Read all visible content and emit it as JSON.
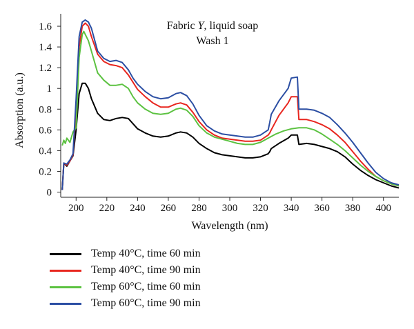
{
  "chart_data": {
    "type": "line",
    "title_line1_prefix": "Fabric ",
    "title_line1_italic": "Y",
    "title_line1_suffix": ", liquid soap",
    "title_line2": "Wash 1",
    "xlabel": "Wavelength (nm)",
    "ylabel": "Absorption (a.u.)",
    "xlim": [
      190,
      410
    ],
    "ylim": [
      -0.05,
      1.72
    ],
    "xticks": [
      200,
      220,
      240,
      260,
      280,
      300,
      320,
      340,
      360,
      380,
      400
    ],
    "xtick_labels": [
      "200",
      "220",
      "240",
      "260",
      "280",
      "300",
      "320",
      "340",
      "360",
      "380",
      "400"
    ],
    "yticks": [
      0,
      0.2,
      0.4,
      0.6,
      0.8,
      1.0,
      1.2,
      1.4,
      1.6
    ],
    "ytick_labels": [
      "0",
      "0.2",
      "0.4",
      "0.6",
      "0.8",
      "1",
      "1.2",
      "1.4",
      "1.6"
    ],
    "legend_position": "bottom",
    "series": [
      {
        "name": "Temp 40°C, time 60 min",
        "color": "#000000",
        "points": [
          [
            191,
            0.02
          ],
          [
            192,
            0.28
          ],
          [
            194,
            0.25
          ],
          [
            196,
            0.3
          ],
          [
            198,
            0.35
          ],
          [
            200,
            0.6
          ],
          [
            202,
            0.95
          ],
          [
            204,
            1.05
          ],
          [
            206,
            1.05
          ],
          [
            208,
            1.0
          ],
          [
            210,
            0.9
          ],
          [
            214,
            0.76
          ],
          [
            218,
            0.7
          ],
          [
            222,
            0.69
          ],
          [
            226,
            0.71
          ],
          [
            230,
            0.72
          ],
          [
            234,
            0.71
          ],
          [
            237,
            0.66
          ],
          [
            240,
            0.61
          ],
          [
            245,
            0.57
          ],
          [
            250,
            0.54
          ],
          [
            255,
            0.53
          ],
          [
            260,
            0.54
          ],
          [
            265,
            0.57
          ],
          [
            268,
            0.58
          ],
          [
            272,
            0.57
          ],
          [
            276,
            0.53
          ],
          [
            280,
            0.47
          ],
          [
            285,
            0.42
          ],
          [
            290,
            0.38
          ],
          [
            295,
            0.36
          ],
          [
            300,
            0.35
          ],
          [
            305,
            0.34
          ],
          [
            310,
            0.33
          ],
          [
            315,
            0.33
          ],
          [
            320,
            0.34
          ],
          [
            325,
            0.37
          ],
          [
            326,
            0.39
          ],
          [
            327,
            0.42
          ],
          [
            332,
            0.47
          ],
          [
            338,
            0.52
          ],
          [
            340,
            0.55
          ],
          [
            344,
            0.55
          ],
          [
            345,
            0.46
          ],
          [
            350,
            0.47
          ],
          [
            355,
            0.46
          ],
          [
            360,
            0.44
          ],
          [
            365,
            0.42
          ],
          [
            370,
            0.39
          ],
          [
            375,
            0.34
          ],
          [
            380,
            0.27
          ],
          [
            385,
            0.21
          ],
          [
            390,
            0.16
          ],
          [
            395,
            0.12
          ],
          [
            400,
            0.09
          ],
          [
            405,
            0.06
          ],
          [
            410,
            0.04
          ]
        ]
      },
      {
        "name": "Temp 40°C, time 90 min",
        "color": "#e8261f",
        "points": [
          [
            191,
            0.02
          ],
          [
            192,
            0.28
          ],
          [
            194,
            0.26
          ],
          [
            196,
            0.3
          ],
          [
            198,
            0.36
          ],
          [
            200,
            0.8
          ],
          [
            202,
            1.4
          ],
          [
            204,
            1.6
          ],
          [
            206,
            1.63
          ],
          [
            208,
            1.6
          ],
          [
            210,
            1.5
          ],
          [
            214,
            1.33
          ],
          [
            218,
            1.26
          ],
          [
            222,
            1.23
          ],
          [
            226,
            1.22
          ],
          [
            230,
            1.2
          ],
          [
            234,
            1.13
          ],
          [
            237,
            1.06
          ],
          [
            240,
            0.99
          ],
          [
            245,
            0.92
          ],
          [
            250,
            0.86
          ],
          [
            255,
            0.82
          ],
          [
            260,
            0.82
          ],
          [
            265,
            0.85
          ],
          [
            268,
            0.86
          ],
          [
            272,
            0.84
          ],
          [
            276,
            0.77
          ],
          [
            280,
            0.68
          ],
          [
            285,
            0.6
          ],
          [
            290,
            0.55
          ],
          [
            295,
            0.52
          ],
          [
            300,
            0.51
          ],
          [
            305,
            0.5
          ],
          [
            310,
            0.49
          ],
          [
            315,
            0.49
          ],
          [
            320,
            0.5
          ],
          [
            325,
            0.55
          ],
          [
            326,
            0.57
          ],
          [
            327,
            0.6
          ],
          [
            332,
            0.74
          ],
          [
            338,
            0.86
          ],
          [
            340,
            0.92
          ],
          [
            344,
            0.92
          ],
          [
            345,
            0.7
          ],
          [
            350,
            0.7
          ],
          [
            355,
            0.68
          ],
          [
            360,
            0.65
          ],
          [
            365,
            0.61
          ],
          [
            370,
            0.55
          ],
          [
            375,
            0.48
          ],
          [
            380,
            0.39
          ],
          [
            385,
            0.3
          ],
          [
            390,
            0.22
          ],
          [
            395,
            0.15
          ],
          [
            400,
            0.11
          ],
          [
            405,
            0.08
          ],
          [
            410,
            0.06
          ]
        ]
      },
      {
        "name": "Temp 60°C, time 60 min",
        "color": "#5cc241",
        "points": [
          [
            191,
            0.45
          ],
          [
            192,
            0.5
          ],
          [
            193,
            0.47
          ],
          [
            194,
            0.52
          ],
          [
            196,
            0.48
          ],
          [
            198,
            0.58
          ],
          [
            200,
            0.62
          ],
          [
            202,
            1.3
          ],
          [
            204,
            1.52
          ],
          [
            205,
            1.55
          ],
          [
            208,
            1.46
          ],
          [
            210,
            1.36
          ],
          [
            214,
            1.15
          ],
          [
            218,
            1.08
          ],
          [
            222,
            1.03
          ],
          [
            226,
            1.03
          ],
          [
            230,
            1.04
          ],
          [
            234,
            1.0
          ],
          [
            237,
            0.92
          ],
          [
            240,
            0.86
          ],
          [
            245,
            0.8
          ],
          [
            250,
            0.76
          ],
          [
            255,
            0.75
          ],
          [
            260,
            0.76
          ],
          [
            265,
            0.8
          ],
          [
            268,
            0.81
          ],
          [
            272,
            0.79
          ],
          [
            276,
            0.73
          ],
          [
            280,
            0.64
          ],
          [
            285,
            0.57
          ],
          [
            290,
            0.53
          ],
          [
            295,
            0.51
          ],
          [
            300,
            0.49
          ],
          [
            305,
            0.47
          ],
          [
            310,
            0.46
          ],
          [
            315,
            0.46
          ],
          [
            320,
            0.48
          ],
          [
            325,
            0.52
          ],
          [
            330,
            0.56
          ],
          [
            335,
            0.59
          ],
          [
            340,
            0.61
          ],
          [
            345,
            0.62
          ],
          [
            350,
            0.62
          ],
          [
            355,
            0.6
          ],
          [
            360,
            0.56
          ],
          [
            365,
            0.51
          ],
          [
            370,
            0.46
          ],
          [
            375,
            0.4
          ],
          [
            380,
            0.33
          ],
          [
            385,
            0.26
          ],
          [
            390,
            0.2
          ],
          [
            395,
            0.15
          ],
          [
            400,
            0.11
          ],
          [
            405,
            0.08
          ],
          [
            410,
            0.06
          ]
        ]
      },
      {
        "name": "Temp 60°C, time 90 min",
        "color": "#2b4ea3",
        "points": [
          [
            191,
            0.02
          ],
          [
            192,
            0.28
          ],
          [
            194,
            0.27
          ],
          [
            196,
            0.31
          ],
          [
            198,
            0.37
          ],
          [
            200,
            0.9
          ],
          [
            202,
            1.5
          ],
          [
            204,
            1.64
          ],
          [
            206,
            1.66
          ],
          [
            208,
            1.64
          ],
          [
            210,
            1.58
          ],
          [
            214,
            1.36
          ],
          [
            218,
            1.29
          ],
          [
            222,
            1.26
          ],
          [
            226,
            1.27
          ],
          [
            230,
            1.25
          ],
          [
            234,
            1.18
          ],
          [
            237,
            1.1
          ],
          [
            240,
            1.04
          ],
          [
            245,
            0.97
          ],
          [
            250,
            0.92
          ],
          [
            255,
            0.9
          ],
          [
            260,
            0.91
          ],
          [
            265,
            0.95
          ],
          [
            268,
            0.96
          ],
          [
            272,
            0.93
          ],
          [
            276,
            0.85
          ],
          [
            280,
            0.74
          ],
          [
            285,
            0.64
          ],
          [
            290,
            0.59
          ],
          [
            295,
            0.56
          ],
          [
            300,
            0.55
          ],
          [
            305,
            0.54
          ],
          [
            310,
            0.53
          ],
          [
            315,
            0.53
          ],
          [
            320,
            0.55
          ],
          [
            325,
            0.6
          ],
          [
            326,
            0.67
          ],
          [
            327,
            0.75
          ],
          [
            332,
            0.88
          ],
          [
            338,
            1.0
          ],
          [
            340,
            1.1
          ],
          [
            344,
            1.11
          ],
          [
            345,
            0.8
          ],
          [
            350,
            0.8
          ],
          [
            355,
            0.79
          ],
          [
            360,
            0.76
          ],
          [
            365,
            0.72
          ],
          [
            370,
            0.65
          ],
          [
            375,
            0.57
          ],
          [
            380,
            0.48
          ],
          [
            385,
            0.38
          ],
          [
            390,
            0.28
          ],
          [
            395,
            0.19
          ],
          [
            400,
            0.13
          ],
          [
            405,
            0.09
          ],
          [
            410,
            0.07
          ]
        ]
      }
    ]
  }
}
